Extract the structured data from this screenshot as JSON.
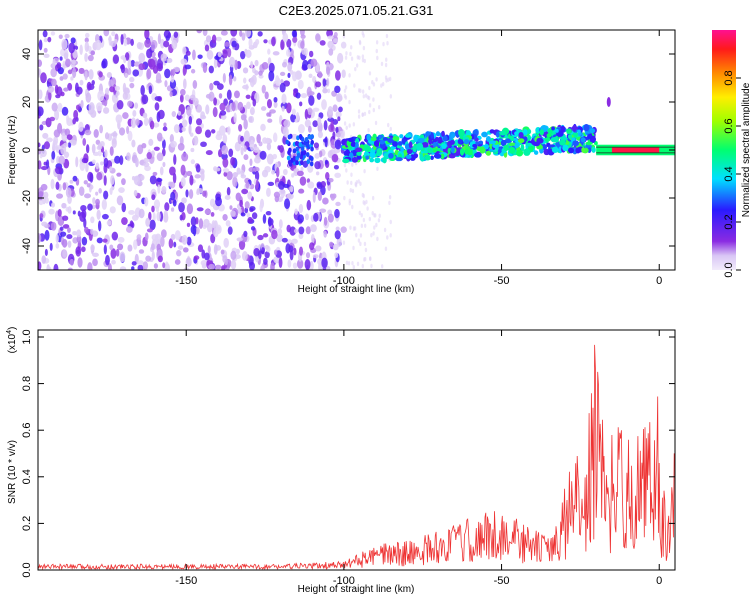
{
  "title": "C2E3.2025.071.05.21.G31",
  "chart_data": [
    {
      "type": "heatmap",
      "xlabel": "Height of straight line (km)",
      "ylabel": "Frequency (Hz)",
      "xlim": [
        -197,
        5
      ],
      "ylim": [
        -50,
        50
      ],
      "xticks": [
        -150,
        -100,
        -50,
        0
      ],
      "yticks": [
        -40,
        -20,
        0,
        20,
        40
      ],
      "colorbar": {
        "label": "Normalized spectral amplitude",
        "range": [
          0,
          1
        ],
        "ticks": [
          0.0,
          0.2,
          0.4,
          0.6,
          0.8
        ],
        "tick_labels": [
          "0.0",
          "0.2",
          "0.4",
          "0.6",
          "0.8"
        ],
        "colormap": "rainbow: white/lavender (0) -> violet -> blue -> cyan -> green -> yellow -> orange -> red -> magenta (1)"
      },
      "regions": [
        {
          "x_range": [
            -197,
            -100
          ],
          "frequency_range": [
            -50,
            50
          ],
          "amplitude": "0.05-0.25 scattered broadband noise"
        },
        {
          "x_range": [
            -100,
            -20
          ],
          "frequency_center": [
            0,
            5
          ],
          "frequency_width": 10,
          "amplitude": "0.2-0.6 band"
        },
        {
          "x_range": [
            -20,
            5
          ],
          "frequency_center": 0,
          "frequency_width": 4,
          "amplitude": "0.8-1.0 narrow line"
        }
      ]
    },
    {
      "type": "line",
      "xlabel": "Height of straight line (km)",
      "ylabel": "SNR (10 * v/v)",
      "yscale_label": "(x10",
      "yscale_exp": "4",
      "xlim": [
        -197,
        5
      ],
      "ylim": [
        0,
        1.03
      ],
      "xticks": [
        -150,
        -100,
        -50,
        0
      ],
      "yticks": [
        0.0,
        0.2,
        0.4,
        0.6,
        0.8,
        1.0
      ],
      "ytick_labels": [
        "0.0",
        "0.2",
        "0.4",
        "0.6",
        "0.8",
        "1.0"
      ],
      "color": "#ee3333",
      "series": [
        {
          "x": [
            -197,
            -180,
            -160,
            -140,
            -120,
            -110,
            -100,
            -95,
            -90,
            -85,
            -80,
            -75,
            -70,
            -65,
            -60,
            -55,
            -50,
            -45,
            -40,
            -35,
            -32,
            -30,
            -28,
            -25,
            -22,
            -20,
            -18,
            -16,
            -15,
            -12,
            -10,
            -8,
            -5,
            -3,
            -1,
            1,
            3,
            5
          ],
          "y": [
            0.02,
            0.02,
            0.02,
            0.02,
            0.02,
            0.025,
            0.03,
            0.06,
            0.08,
            0.1,
            0.1,
            0.12,
            0.14,
            0.16,
            0.18,
            0.2,
            0.22,
            0.18,
            0.14,
            0.13,
            0.16,
            0.28,
            0.38,
            0.42,
            0.55,
            0.85,
            0.55,
            0.28,
            0.52,
            0.5,
            0.45,
            0.55,
            0.5,
            0.55,
            0.75,
            0.28,
            0.25,
            0.45
          ]
        }
      ]
    }
  ]
}
